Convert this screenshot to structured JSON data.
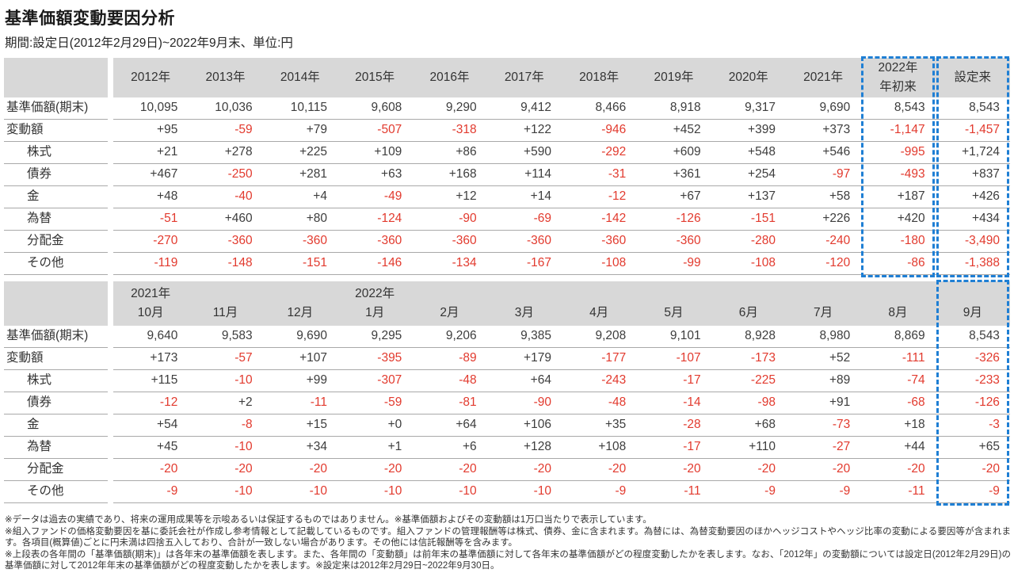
{
  "page": {
    "title": "基準価額変動要因分析",
    "subtitle": "期間:設定日(2012年2月29日)~2022年9月末、単位:円"
  },
  "colors": {
    "header_bg": "#d8d8d8",
    "grid_line": "#a9a9a9",
    "negative_red": "#e23a2e",
    "highlight_blue": "#1f7fd4",
    "text": "#3d3d3d"
  },
  "tables": [
    {
      "name": "yearly",
      "columns": [
        [
          "2012年"
        ],
        [
          "2013年"
        ],
        [
          "2014年"
        ],
        [
          "2015年"
        ],
        [
          "2016年"
        ],
        [
          "2017年"
        ],
        [
          "2018年"
        ],
        [
          "2019年"
        ],
        [
          "2020年"
        ],
        [
          "2021年"
        ],
        [
          "2022年",
          "年初来"
        ],
        [
          "設定来"
        ]
      ],
      "highlight_columns": [
        10,
        11
      ],
      "rows": [
        {
          "label": "基準価額(期末)",
          "indent": false,
          "values": [
            "10,095",
            "10,036",
            "10,115",
            "9,608",
            "9,290",
            "9,412",
            "8,466",
            "8,918",
            "9,317",
            "9,690",
            "8,543",
            "8,543"
          ]
        },
        {
          "label": "変動額",
          "indent": false,
          "values": [
            "+95",
            "-59",
            "+79",
            "-507",
            "-318",
            "+122",
            "-946",
            "+452",
            "+399",
            "+373",
            "-1,147",
            "-1,457"
          ]
        },
        {
          "label": "株式",
          "indent": true,
          "values": [
            "+21",
            "+278",
            "+225",
            "+109",
            "+86",
            "+590",
            "-292",
            "+609",
            "+548",
            "+546",
            "-995",
            "+1,724"
          ]
        },
        {
          "label": "債券",
          "indent": true,
          "values": [
            "+467",
            "-250",
            "+281",
            "+63",
            "+168",
            "+114",
            "-31",
            "+361",
            "+254",
            "-97",
            "-493",
            "+837"
          ]
        },
        {
          "label": "金",
          "indent": true,
          "values": [
            "+48",
            "-40",
            "+4",
            "-49",
            "+12",
            "+14",
            "-12",
            "+67",
            "+137",
            "+58",
            "+187",
            "+426"
          ]
        },
        {
          "label": "為替",
          "indent": true,
          "values": [
            "-51",
            "+460",
            "+80",
            "-124",
            "-90",
            "-69",
            "-142",
            "-126",
            "-151",
            "+226",
            "+420",
            "+434"
          ]
        },
        {
          "label": "分配金",
          "indent": true,
          "values": [
            "-270",
            "-360",
            "-360",
            "-360",
            "-360",
            "-360",
            "-360",
            "-360",
            "-280",
            "-240",
            "-180",
            "-3,490"
          ]
        },
        {
          "label": "その他",
          "indent": true,
          "values": [
            "-119",
            "-148",
            "-151",
            "-146",
            "-134",
            "-167",
            "-108",
            "-99",
            "-108",
            "-120",
            "-86",
            "-1,388"
          ]
        }
      ]
    },
    {
      "name": "monthly",
      "columns": [
        [
          "2021年",
          "10月"
        ],
        [
          "",
          "11月"
        ],
        [
          "",
          "12月"
        ],
        [
          "2022年",
          "1月"
        ],
        [
          "",
          "2月"
        ],
        [
          "",
          "3月"
        ],
        [
          "",
          "4月"
        ],
        [
          "",
          "5月"
        ],
        [
          "",
          "6月"
        ],
        [
          "",
          "7月"
        ],
        [
          "",
          "8月"
        ],
        [
          "",
          "9月"
        ]
      ],
      "highlight_columns": [
        11
      ],
      "rows": [
        {
          "label": "基準価額(期末)",
          "indent": false,
          "values": [
            "9,640",
            "9,583",
            "9,690",
            "9,295",
            "9,206",
            "9,385",
            "9,208",
            "9,101",
            "8,928",
            "8,980",
            "8,869",
            "8,543"
          ]
        },
        {
          "label": "変動額",
          "indent": false,
          "values": [
            "+173",
            "-57",
            "+107",
            "-395",
            "-89",
            "+179",
            "-177",
            "-107",
            "-173",
            "+52",
            "-111",
            "-326"
          ]
        },
        {
          "label": "株式",
          "indent": true,
          "values": [
            "+115",
            "-10",
            "+99",
            "-307",
            "-48",
            "+64",
            "-243",
            "-17",
            "-225",
            "+89",
            "-74",
            "-233"
          ]
        },
        {
          "label": "債券",
          "indent": true,
          "values": [
            "-12",
            "+2",
            "-11",
            "-59",
            "-81",
            "-90",
            "-48",
            "-14",
            "-98",
            "+91",
            "-68",
            "-126"
          ]
        },
        {
          "label": "金",
          "indent": true,
          "values": [
            "+54",
            "-8",
            "+15",
            "+0",
            "+64",
            "+106",
            "+35",
            "-28",
            "+68",
            "-73",
            "+18",
            "-3"
          ]
        },
        {
          "label": "為替",
          "indent": true,
          "values": [
            "+45",
            "-10",
            "+34",
            "+1",
            "+6",
            "+128",
            "+108",
            "-17",
            "+110",
            "-27",
            "+44",
            "+65"
          ]
        },
        {
          "label": "分配金",
          "indent": true,
          "values": [
            "-20",
            "-20",
            "-20",
            "-20",
            "-20",
            "-20",
            "-20",
            "-20",
            "-20",
            "-20",
            "-20",
            "-20"
          ]
        },
        {
          "label": "その他",
          "indent": true,
          "values": [
            "-9",
            "-10",
            "-10",
            "-10",
            "-10",
            "-10",
            "-9",
            "-11",
            "-9",
            "-9",
            "-11",
            "-9"
          ]
        }
      ]
    }
  ],
  "footnotes": [
    "※データは過去の実績であり、将来の運用成果等を示唆あるいは保証するものではありません。※基準価額およびその変動額は1万口当たりで表示しています。",
    "※組入ファンドの価格変動要因を基に委託会社が作成し参考情報として記載しているものです。組入ファンドの管理報酬等は株式、債券、金に含まれます。為替には、為替変動要因のほかヘッジコストやヘッジ比率の変動による要因等が含まれます。各項目(概算値)ごとに円未満は四捨五入しており、合計が一致しない場合があります。その他には信託報酬等を含みます。",
    "※上段表の各年間の「基準価額(期末)」は各年末の基準価額を表します。また、各年間の「変動額」は前年末の基準価額に対して各年末の基準価額がどの程度変動したかを表します。なお、「2012年」の変動額については設定日(2012年2月29日)の基準価額に対して2012年年末の基準価額がどの程度変動したかを表します。※設定来は2012年2月29日~2022年9月30日。"
  ]
}
